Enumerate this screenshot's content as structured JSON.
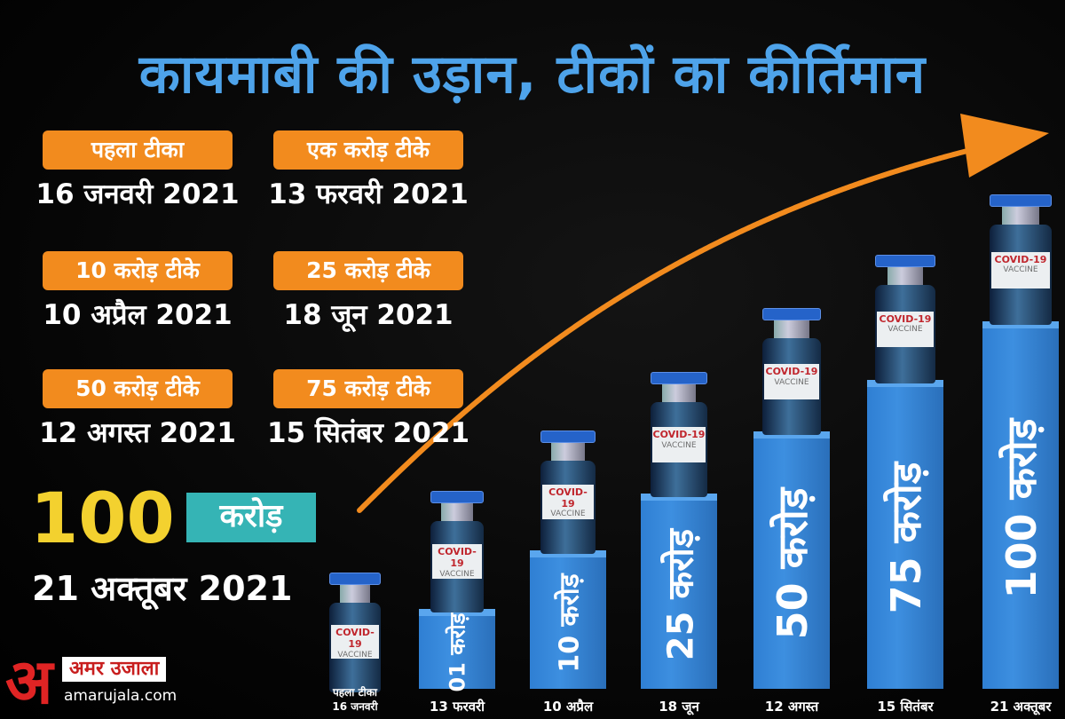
{
  "title": "कायमाबी की उड़ान, टीकों का कीर्तिमान",
  "milestones": [
    {
      "label": "पहला टीका",
      "date": "16 जनवरी 2021"
    },
    {
      "label": "एक करोड़ टीके",
      "date": "13 फरवरी 2021"
    },
    {
      "label": "10 करोड़ टीके",
      "date": "10 अप्रैल 2021"
    },
    {
      "label": "25 करोड़ टीके",
      "date": "18 जून 2021"
    },
    {
      "label": "50 करोड़ टीके",
      "date": "12 अगस्त 2021"
    },
    {
      "label": "75 करोड़ टीके",
      "date": "15 सितंबर 2021"
    }
  ],
  "highlight": {
    "number": "100",
    "unit": "करोड़",
    "date": "21 अक्तूबर 2021"
  },
  "vial_label": {
    "line1": "COVID-19",
    "line2": "VACCINE"
  },
  "chart_data": {
    "type": "bar",
    "categories": [
      "पहला टीका 16 जनवरी",
      "13 फरवरी",
      "10 अप्रैल",
      "18 जून",
      "12 अगस्त",
      "15 सितंबर",
      "21 अक्तूबर"
    ],
    "bar_labels": [
      "",
      "01 करोड़",
      "10 करोड़",
      "25 करोड़",
      "50 करोड़",
      "75 करोड़",
      "100 करोड़"
    ],
    "values": [
      0,
      1,
      10,
      25,
      50,
      75,
      100
    ]
  },
  "category_labels": {
    "first_line1": "पहला टीका",
    "first_line2": "16 जनवरी"
  },
  "logo": {
    "mark": "अ",
    "name": "अमर उजाला",
    "url": "amarujala.com"
  },
  "colors": {
    "title": "#4ea3ea",
    "badge": "#f28b1e",
    "bar": "#3d8fe0",
    "arrow": "#f28b1e",
    "highlight_number": "#f3d12f",
    "highlight_unit_bg": "#35b4b5"
  }
}
